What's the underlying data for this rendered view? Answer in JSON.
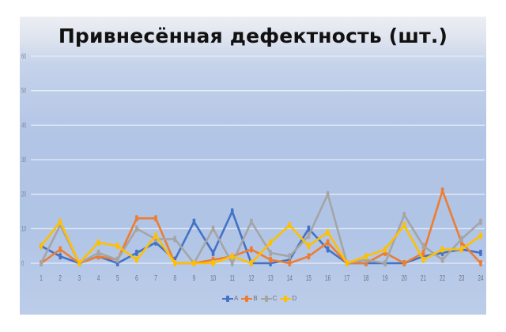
{
  "chart_data": {
    "type": "line",
    "title": "Привнесённая дефектность (шт.)",
    "xlabel": "",
    "ylabel": "",
    "ylim": [
      0,
      60
    ],
    "yticks": [
      0,
      10,
      20,
      30,
      40,
      50,
      60
    ],
    "grid": true,
    "legend_position": "bottom",
    "categories": [
      "1",
      "2",
      "3",
      "4",
      "5",
      "6",
      "7",
      "8",
      "9",
      "10",
      "11",
      "12",
      "13",
      "14",
      "15",
      "16",
      "17",
      "18",
      "19",
      "20",
      "21",
      "22",
      "23",
      "24"
    ],
    "series": [
      {
        "name": "A",
        "color": "#4472c4",
        "values": [
          5,
          2,
          0,
          2,
          0,
          3,
          6,
          1,
          12,
          3,
          15,
          0,
          0,
          1,
          10,
          4,
          0,
          0,
          0,
          0,
          2,
          3,
          4,
          3
        ]
      },
      {
        "name": "B",
        "color": "#ed7d31",
        "values": [
          0,
          4,
          0,
          2,
          1,
          13,
          13,
          0,
          0,
          1,
          2,
          4,
          1,
          0,
          2,
          6,
          0,
          0,
          3,
          0,
          3,
          21,
          6,
          0
        ]
      },
      {
        "name": "C",
        "color": "#a5a5a5",
        "values": [
          0,
          11,
          0,
          3,
          1,
          10,
          7,
          7,
          0,
          10,
          0,
          12,
          3,
          2,
          8,
          20,
          0,
          1,
          0,
          14,
          5,
          1,
          7,
          12
        ]
      },
      {
        "name": "D",
        "color": "#ffc000",
        "values": [
          5,
          12,
          0,
          6,
          5,
          1,
          8,
          0,
          0,
          0,
          2,
          0,
          6,
          11,
          5,
          9,
          0,
          2,
          4,
          11,
          1,
          4,
          4,
          8
        ]
      }
    ]
  }
}
